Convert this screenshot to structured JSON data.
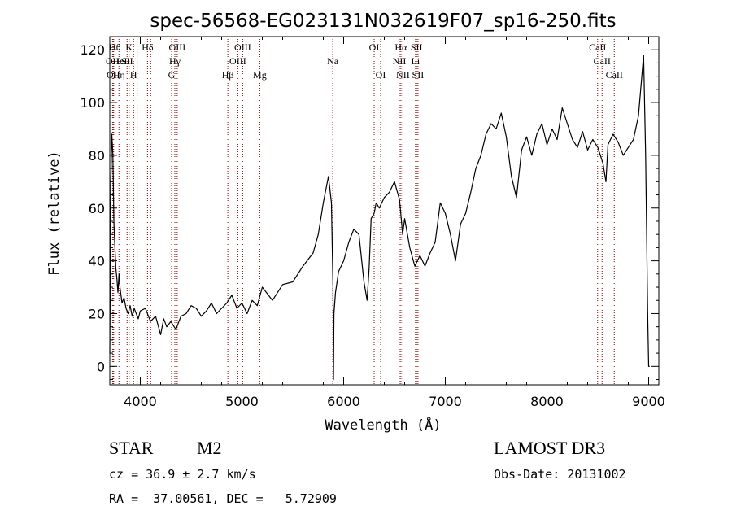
{
  "chart_data": {
    "type": "line",
    "title": "spec-56568-EG023131N032619F07_sp16-250.fits",
    "xlabel": "Wavelength (Å)",
    "ylabel": "Flux (relative)",
    "xlim": [
      3700,
      9100
    ],
    "ylim": [
      -7,
      125
    ],
    "x_ticks": [
      4000,
      5000,
      6000,
      7000,
      8000,
      9000
    ],
    "y_ticks": [
      0,
      20,
      40,
      60,
      80,
      100,
      120
    ],
    "grid": false,
    "line_color": "#000000",
    "marker_color": "#8b0000",
    "series": [
      {
        "x": [
          3700,
          3710,
          3720,
          3730,
          3740,
          3750,
          3760,
          3770,
          3780,
          3790,
          3800,
          3820,
          3840,
          3860,
          3880,
          3900,
          3920,
          3940,
          3960,
          3980,
          4000,
          4050,
          4100,
          4150,
          4200,
          4230,
          4260,
          4300,
          4350,
          4400,
          4450,
          4500,
          4550,
          4600,
          4650,
          4700,
          4750,
          4800,
          4850,
          4900,
          4950,
          5000,
          5050,
          5100,
          5150,
          5200,
          5300,
          5400,
          5500,
          5600,
          5700,
          5750,
          5800,
          5850,
          5880,
          5895,
          5900,
          5905,
          5920,
          5950,
          6000,
          6050,
          6100,
          6150,
          6200,
          6230,
          6250,
          6270,
          6300,
          6320,
          6350,
          6400,
          6450,
          6500,
          6550,
          6580,
          6600,
          6650,
          6700,
          6750,
          6800,
          6850,
          6900,
          6950,
          7000,
          7050,
          7100,
          7150,
          7200,
          7250,
          7300,
          7350,
          7400,
          7450,
          7500,
          7550,
          7600,
          7650,
          7700,
          7750,
          7800,
          7850,
          7900,
          7950,
          8000,
          8050,
          8100,
          8150,
          8200,
          8250,
          8300,
          8350,
          8400,
          8450,
          8500,
          8550,
          8580,
          8600,
          8650,
          8700,
          8750,
          8800,
          8850,
          8900,
          8950,
          8970,
          8990,
          9000,
          9010
        ],
        "y": [
          5,
          70,
          88,
          80,
          55,
          45,
          37,
          33,
          28,
          35,
          30,
          24,
          26,
          22,
          20,
          23,
          19,
          22,
          20,
          18,
          21,
          22,
          17,
          19,
          12,
          18,
          15,
          17,
          14,
          19,
          20,
          23,
          22,
          19,
          21,
          24,
          20,
          22,
          24,
          27,
          22,
          24,
          20,
          25,
          23,
          30,
          25,
          31,
          32,
          38,
          43,
          50,
          62,
          72,
          62,
          30,
          -5,
          20,
          28,
          36,
          40,
          47,
          52,
          50,
          32,
          25,
          37,
          56,
          58,
          62,
          60,
          64,
          66,
          70,
          63,
          50,
          56,
          45,
          38,
          42,
          38,
          43,
          47,
          62,
          58,
          50,
          40,
          54,
          58,
          66,
          75,
          80,
          88,
          92,
          90,
          96,
          87,
          72,
          64,
          82,
          87,
          80,
          88,
          92,
          84,
          90,
          86,
          98,
          92,
          86,
          83,
          89,
          82,
          86,
          83,
          77,
          70,
          84,
          88,
          85,
          80,
          83,
          86,
          95,
          118,
          80,
          20,
          0,
          0
        ]
      }
    ],
    "line_markers": [
      {
        "x": 3727,
        "row": 2,
        "label": "OII"
      },
      {
        "x": 3735,
        "row": 3,
        "label": "OII"
      },
      {
        "x": 3750,
        "row": 1,
        "label": "Hθ"
      },
      {
        "x": 3790,
        "row": 3,
        "label": "Hη"
      },
      {
        "x": 3800,
        "row": 2,
        "label": "HeI"
      },
      {
        "x": 3870,
        "row": 2,
        "label": "SII"
      },
      {
        "x": 3890,
        "row": 1,
        "label": "K"
      },
      {
        "x": 3934,
        "row": 3,
        "label": "H"
      },
      {
        "x": 3969,
        "row": 1,
        "label": ""
      },
      {
        "x": 4071,
        "row": 1,
        "label": "Hδ"
      },
      {
        "x": 4102,
        "row": 2,
        "label": ""
      },
      {
        "x": 4308,
        "row": 3,
        "label": "G"
      },
      {
        "x": 4340,
        "row": 2,
        "label": "Hγ"
      },
      {
        "x": 4363,
        "row": 1,
        "label": "OIII"
      },
      {
        "x": 4861,
        "row": 3,
        "label": "Hβ"
      },
      {
        "x": 4959,
        "row": 2,
        "label": "OIII"
      },
      {
        "x": 5007,
        "row": 1,
        "label": "OIII"
      },
      {
        "x": 5175,
        "row": 3,
        "label": "Mg"
      },
      {
        "x": 5893,
        "row": 2,
        "label": "Na"
      },
      {
        "x": 6300,
        "row": 1,
        "label": "OI"
      },
      {
        "x": 6364,
        "row": 3,
        "label": "OI"
      },
      {
        "x": 6548,
        "row": 2,
        "label": "NII"
      },
      {
        "x": 6563,
        "row": 1,
        "label": "Hα"
      },
      {
        "x": 6583,
        "row": 3,
        "label": "NII"
      },
      {
        "x": 6707,
        "row": 2,
        "label": "Li"
      },
      {
        "x": 6717,
        "row": 1,
        "label": "SII"
      },
      {
        "x": 6731,
        "row": 3,
        "label": "SII"
      },
      {
        "x": 8498,
        "row": 1,
        "label": "CaII"
      },
      {
        "x": 8542,
        "row": 2,
        "label": "CaII"
      },
      {
        "x": 8662,
        "row": 3,
        "label": "CaII"
      }
    ]
  },
  "info": {
    "class_label": "STAR",
    "subclass": "M2",
    "survey": "LAMOST DR3",
    "cz": "cz = 36.9 ± 2.7 km/s",
    "obs_date": "Obs-Date: 20131002",
    "coords": "RA =  37.00561, DEC =   5.72909"
  }
}
